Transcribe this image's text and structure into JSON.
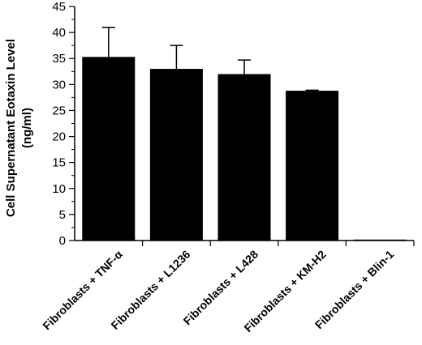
{
  "chart_data": {
    "type": "bar",
    "categories": [
      "Fibroblasts + TNF-α",
      "Fibroblasts + L1236",
      "Fibroblasts + L428",
      "Fibroblasts + KM-H2",
      "Fibroblasts + Blin-1"
    ],
    "values": [
      35.3,
      33.0,
      32.0,
      28.8,
      0.1
    ],
    "errors": [
      5.7,
      4.5,
      2.7,
      0.1,
      0
    ],
    "ylabel_line1": "Cell Supernatant Eotaxin Level",
    "ylabel_line2": "(ng/ml)",
    "ylim": [
      0,
      45
    ],
    "yticks": [
      0,
      5,
      10,
      15,
      20,
      25,
      30,
      35,
      40,
      45
    ],
    "grid": false,
    "legend": false,
    "bar_color": "#000000"
  }
}
